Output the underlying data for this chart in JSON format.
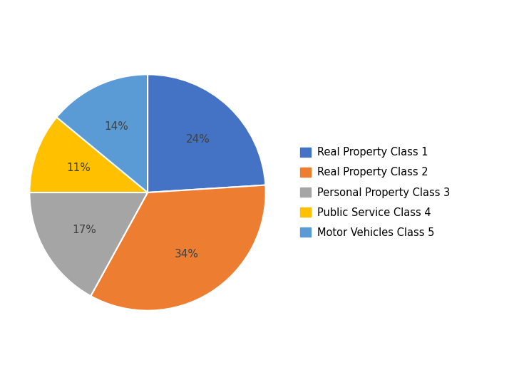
{
  "labels": [
    "Real Property Class 1",
    "Real Property Class 2",
    "Personal Property Class 3",
    "Public Service Class 4",
    "Motor Vehicles Class 5"
  ],
  "values": [
    24,
    34,
    17,
    11,
    14
  ],
  "colors": [
    "#4472C4",
    "#ED7D31",
    "#A5A5A5",
    "#FFC000",
    "#5B9BD5"
  ],
  "pct_labels": [
    "24%",
    "34%",
    "17%",
    "11%",
    "14%"
  ],
  "background_color": "#FFFFFF",
  "label_fontsize": 11,
  "label_color": "#404040",
  "legend_fontsize": 10.5
}
